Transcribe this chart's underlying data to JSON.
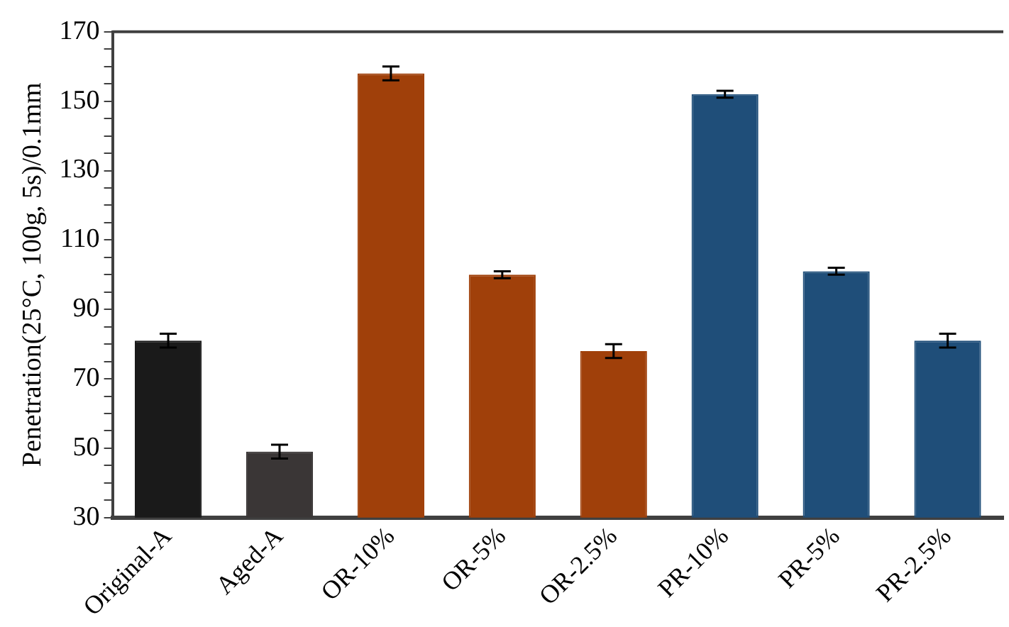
{
  "chart_data": {
    "type": "bar",
    "ylabel": "Penetration(25°C, 100g, 5s)/0.1mm",
    "categories": [
      "Original-A",
      "Aged-A",
      "OR-10%",
      "OR-5%",
      "OR-2.5%",
      "PR-10%",
      "PR-5%",
      "PR-2.5%"
    ],
    "values": [
      81,
      49,
      158,
      100,
      78,
      152,
      101,
      81
    ],
    "errors": [
      2,
      2,
      2,
      1,
      2,
      1,
      1,
      2
    ],
    "colors": [
      "#1a1a1a",
      "#3a3636",
      "#a0400a",
      "#a0400a",
      "#a0400a",
      "#1f4e79",
      "#1f4e79",
      "#1f4e79"
    ],
    "ylim": [
      30,
      170
    ],
    "yticks": [
      30,
      {
        "value": 35,
        "label": null
      },
      {
        "value": 40,
        "label": null
      },
      {
        "value": 45,
        "label": null
      },
      50,
      {
        "value": 55,
        "label": null
      },
      {
        "value": 60,
        "label": null
      },
      {
        "value": 65,
        "label": null
      },
      70,
      {
        "value": 75,
        "label": null
      },
      {
        "value": 80,
        "label": null
      },
      {
        "value": 85,
        "label": null
      },
      90,
      {
        "value": 95,
        "label": null
      },
      {
        "value": 100,
        "label": null
      },
      {
        "value": 105,
        "label": null
      },
      110,
      {
        "value": 115,
        "label": null
      },
      {
        "value": 120,
        "label": null
      },
      {
        "value": 125,
        "label": null
      },
      130,
      {
        "value": 135,
        "label": null
      },
      {
        "value": 140,
        "label": null
      },
      {
        "value": 145,
        "label": null
      },
      150,
      {
        "value": 155,
        "label": null
      },
      {
        "value": 160,
        "label": null
      },
      {
        "value": 165,
        "label": null
      },
      170
    ],
    "grid": false,
    "legend": false
  }
}
